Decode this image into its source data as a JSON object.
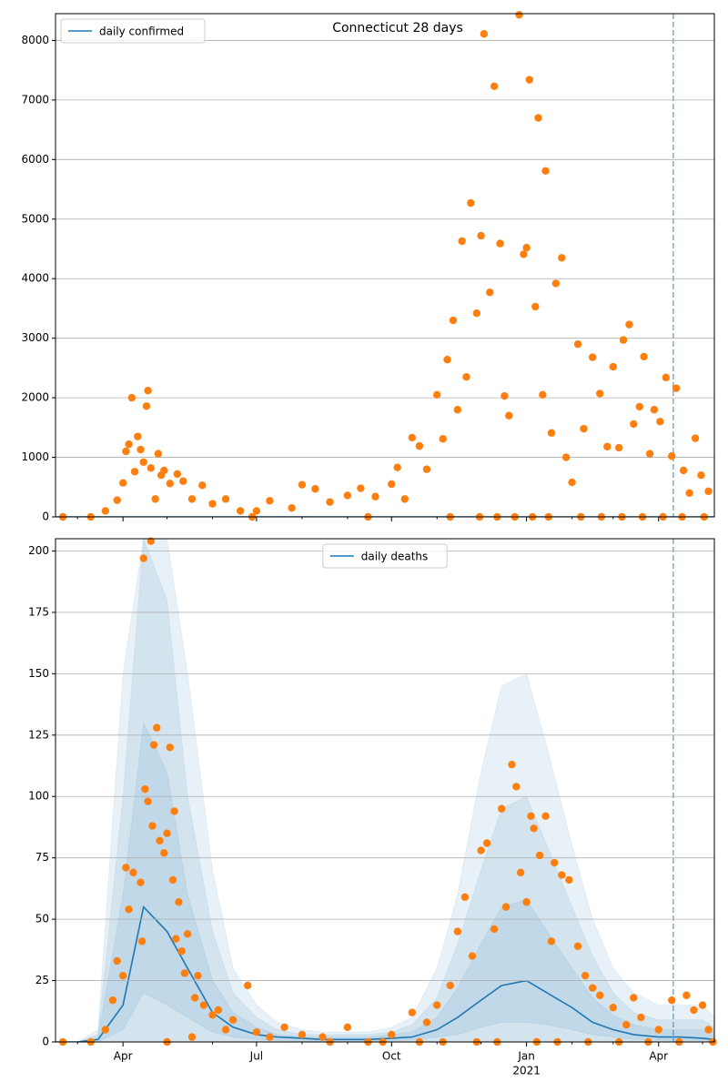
{
  "chart_data": [
    {
      "type": "scatter-line",
      "title": "Connecticut 28 days",
      "xlim": [
        "2020-02-15",
        "2021-05-09"
      ],
      "ylim": [
        0,
        8450
      ],
      "yticks": [
        0,
        1000,
        2000,
        3000,
        4000,
        5000,
        6000,
        7000,
        8000
      ],
      "grid": true,
      "legend": "upper left",
      "vline": {
        "x": "2021-04-11",
        "color": "#1f77b4"
      },
      "series": [
        {
          "name": "daily confirmed",
          "color": "#1f77b4",
          "x": [
            "2020-02-15",
            "2021-05-09"
          ],
          "values": [
            0,
            0
          ]
        }
      ],
      "points": {
        "color": "#ff7f0e",
        "x": [
          "2020-02-20",
          "2020-03-10",
          "2020-03-20",
          "2020-03-28",
          "2020-04-01",
          "2020-04-03",
          "2020-04-05",
          "2020-04-07",
          "2020-04-09",
          "2020-04-11",
          "2020-04-13",
          "2020-04-15",
          "2020-04-17",
          "2020-04-18",
          "2020-04-20",
          "2020-04-23",
          "2020-04-25",
          "2020-04-27",
          "2020-04-29",
          "2020-05-03",
          "2020-05-08",
          "2020-05-12",
          "2020-05-18",
          "2020-05-25",
          "2020-06-01",
          "2020-06-10",
          "2020-06-20",
          "2020-07-01",
          "2020-07-10",
          "2020-07-25",
          "2020-08-01",
          "2020-08-10",
          "2020-08-20",
          "2020-09-01",
          "2020-09-10",
          "2020-09-20",
          "2020-10-01",
          "2020-10-05",
          "2020-10-10",
          "2020-10-15",
          "2020-10-20",
          "2020-10-25",
          "2020-11-01",
          "2020-11-05",
          "2020-11-08",
          "2020-11-12",
          "2020-11-15",
          "2020-11-18",
          "2020-11-21",
          "2020-11-24",
          "2020-11-28",
          "2020-12-01",
          "2020-12-03",
          "2020-12-07",
          "2020-12-10",
          "2020-12-14",
          "2020-12-17",
          "2020-12-20",
          "2020-12-27",
          "2020-12-30",
          "2021-01-01",
          "2021-01-03",
          "2021-01-07",
          "2021-01-09",
          "2021-01-12",
          "2021-01-14",
          "2021-01-18",
          "2021-01-21",
          "2021-01-25",
          "2021-01-28",
          "2021-02-01",
          "2021-02-05",
          "2021-02-09",
          "2021-02-15",
          "2021-02-20",
          "2021-02-25",
          "2021-03-01",
          "2021-03-05",
          "2021-03-08",
          "2021-03-12",
          "2021-03-15",
          "2021-03-19",
          "2021-03-22",
          "2021-03-26",
          "2021-03-29",
          "2021-04-02",
          "2021-04-06",
          "2021-04-10",
          "2021-04-13",
          "2021-04-18",
          "2021-04-22",
          "2021-04-26",
          "2021-04-30",
          "2021-05-05",
          "2020-06-28",
          "2020-09-15",
          "2020-11-10",
          "2020-11-30",
          "2020-12-12",
          "2020-12-24",
          "2021-01-05",
          "2021-01-16",
          "2021-02-07",
          "2021-02-21",
          "2021-03-07",
          "2021-03-21",
          "2021-04-04",
          "2021-04-17",
          "2021-05-02"
        ],
        "values": [
          0,
          0,
          100,
          280,
          570,
          1100,
          1220,
          2000,
          760,
          1350,
          1130,
          920,
          1860,
          2120,
          820,
          300,
          1060,
          700,
          780,
          560,
          720,
          600,
          300,
          530,
          220,
          300,
          100,
          100,
          270,
          150,
          540,
          470,
          250,
          360,
          480,
          340,
          550,
          830,
          300,
          1330,
          1190,
          800,
          2050,
          1310,
          2640,
          3300,
          1800,
          4630,
          2350,
          5270,
          3420,
          4720,
          8110,
          3770,
          7230,
          4590,
          2030,
          1700,
          8430,
          4410,
          4520,
          7340,
          3530,
          6700,
          2050,
          5810,
          1410,
          3920,
          4350,
          1000,
          580,
          2900,
          1480,
          2680,
          2070,
          1180,
          2520,
          1160,
          2970,
          3230,
          1560,
          1850,
          2690,
          1060,
          1800,
          1600,
          2340,
          1020,
          2160,
          780,
          400,
          1320,
          700,
          430,
          0,
          0,
          0,
          0,
          0,
          0,
          0,
          0,
          0,
          0,
          0,
          0,
          0,
          0,
          0
        ]
      }
    },
    {
      "type": "scatter-band",
      "xlim": [
        "2020-02-15",
        "2021-05-09"
      ],
      "ylim": [
        0,
        205
      ],
      "yticks": [
        0,
        25,
        50,
        75,
        100,
        125,
        150,
        175,
        200
      ],
      "grid": true,
      "legend": "upper center",
      "xticks": [
        {
          "value": "2020-04-01",
          "label": "Apr"
        },
        {
          "value": "2020-07-01",
          "label": "Jul"
        },
        {
          "value": "2020-10-01",
          "label": "Oct"
        },
        {
          "value": "2021-01-01",
          "label": "Jan"
        },
        {
          "value": "2021-04-01",
          "label": "Apr"
        }
      ],
      "year_label": "2021",
      "xminorticks": [
        "2020-03-01",
        "2020-05-01",
        "2020-06-01",
        "2020-08-01",
        "2020-09-01",
        "2020-11-01",
        "2020-12-01",
        "2021-02-01",
        "2021-03-01",
        "2021-05-01"
      ],
      "vline": {
        "x": "2021-04-11",
        "color": "#1f77b4"
      },
      "series": [
        {
          "name": "daily deaths",
          "color": "#1f77b4",
          "x": [
            "2020-02-15",
            "2020-03-01",
            "2020-03-15",
            "2020-04-01",
            "2020-04-15",
            "2020-05-01",
            "2020-05-15",
            "2020-06-01",
            "2020-06-15",
            "2020-07-01",
            "2020-07-15",
            "2020-08-01",
            "2020-08-15",
            "2020-09-01",
            "2020-09-15",
            "2020-10-01",
            "2020-10-15",
            "2020-11-01",
            "2020-11-15",
            "2020-12-01",
            "2020-12-15",
            "2021-01-01",
            "2021-01-15",
            "2021-02-01",
            "2021-02-15",
            "2021-03-01",
            "2021-03-15",
            "2021-04-01",
            "2021-04-15",
            "2021-05-01",
            "2021-05-09"
          ],
          "values": [
            0,
            0,
            1,
            15,
            55,
            45,
            30,
            12,
            6,
            3,
            2,
            1.5,
            1,
            1,
            1,
            1.5,
            2,
            5,
            10,
            17,
            23,
            25,
            20,
            14,
            8,
            5,
            3,
            2,
            2,
            1.5,
            1
          ]
        }
      ],
      "bands": {
        "color": "#1f77b4",
        "x": [
          "2020-02-15",
          "2020-03-01",
          "2020-03-15",
          "2020-04-01",
          "2020-04-15",
          "2020-05-01",
          "2020-05-15",
          "2020-06-01",
          "2020-06-15",
          "2020-07-01",
          "2020-07-15",
          "2020-08-01",
          "2020-08-15",
          "2020-09-01",
          "2020-09-15",
          "2020-10-01",
          "2020-10-15",
          "2020-11-01",
          "2020-11-15",
          "2020-12-01",
          "2020-12-15",
          "2021-01-01",
          "2021-01-15",
          "2021-02-01",
          "2021-02-15",
          "2021-03-01",
          "2021-03-15",
          "2021-04-01",
          "2021-04-15",
          "2021-05-01",
          "2021-05-09"
        ],
        "levels": [
          {
            "lower": [
              0,
              0,
              0,
              0,
              0,
              0,
              0,
              0,
              0,
              0,
              0,
              0,
              0,
              0,
              0,
              0,
              0,
              0,
              0,
              0,
              0,
              0,
              0,
              0,
              0,
              0,
              0,
              0,
              0,
              0,
              0
            ],
            "upper": [
              0,
              0,
              5,
              150,
              205,
              205,
              150,
              70,
              30,
              15,
              8,
              5,
              4,
              4,
              4,
              6,
              10,
              30,
              60,
              110,
              145,
              150,
              120,
              80,
              50,
              30,
              20,
              15,
              15,
              15,
              10
            ]
          },
          {
            "lower": [
              0,
              0,
              0,
              0,
              0,
              0,
              0,
              0,
              0,
              0,
              0,
              0,
              0,
              0,
              0,
              0,
              0,
              0,
              0,
              0,
              0,
              0,
              0,
              0,
              0,
              0,
              0,
              0,
              0,
              0,
              0
            ],
            "upper": [
              0,
              0,
              3,
              100,
              205,
              180,
              100,
              45,
              20,
              10,
              5,
              3,
              3,
              3,
              3,
              4,
              7,
              18,
              40,
              70,
              95,
              100,
              80,
              55,
              35,
              20,
              12,
              9,
              9,
              9,
              6
            ]
          },
          {
            "lower": [
              0,
              0,
              0,
              5,
              20,
              15,
              10,
              4,
              2,
              1,
              0.5,
              0.3,
              0.3,
              0.3,
              0.3,
              0.5,
              0.7,
              2,
              3,
              6,
              8,
              8,
              7,
              5,
              3,
              2,
              1,
              0.7,
              0.7,
              0.5,
              0.3
            ],
            "upper": [
              0,
              0,
              2,
              60,
              130,
              110,
              60,
              25,
              12,
              6,
              3,
              2,
              2,
              2,
              2,
              3,
              4,
              10,
              22,
              40,
              55,
              58,
              45,
              30,
              18,
              11,
              7,
              5,
              5,
              5,
              4
            ]
          }
        ]
      },
      "points": {
        "color": "#ff7f0e",
        "x": [
          "2020-02-20",
          "2020-03-10",
          "2020-03-20",
          "2020-03-25",
          "2020-03-28",
          "2020-04-01",
          "2020-04-03",
          "2020-04-05",
          "2020-04-08",
          "2020-04-15",
          "2020-04-16",
          "2020-04-13",
          "2020-04-14",
          "2020-04-20",
          "2020-04-18",
          "2020-04-22",
          "2020-04-24",
          "2020-04-21",
          "2020-04-26",
          "2020-05-03",
          "2020-04-29",
          "2020-05-01",
          "2020-05-06",
          "2020-05-05",
          "2020-05-07",
          "2020-05-09",
          "2020-05-11",
          "2020-05-13",
          "2020-05-15",
          "2020-05-18",
          "2020-05-20",
          "2020-05-22",
          "2020-05-26",
          "2020-06-01",
          "2020-06-05",
          "2020-06-10",
          "2020-06-15",
          "2020-06-25",
          "2020-07-01",
          "2020-07-10",
          "2020-07-20",
          "2020-08-01",
          "2020-08-15",
          "2020-09-01",
          "2020-09-15",
          "2020-10-01",
          "2020-10-15",
          "2020-10-25",
          "2020-11-01",
          "2020-11-10",
          "2020-11-15",
          "2020-11-20",
          "2020-11-25",
          "2020-12-01",
          "2020-12-05",
          "2020-12-10",
          "2020-12-15",
          "2020-12-18",
          "2020-12-22",
          "2020-12-25",
          "2020-12-28",
          "2021-01-01",
          "2021-01-04",
          "2021-01-06",
          "2021-01-10",
          "2021-01-14",
          "2021-01-18",
          "2021-01-20",
          "2021-01-25",
          "2021-01-30",
          "2021-02-05",
          "2021-02-10",
          "2021-02-15",
          "2021-02-20",
          "2021-03-01",
          "2021-03-10",
          "2021-03-15",
          "2021-03-20",
          "2021-04-01",
          "2021-04-10",
          "2021-04-20",
          "2021-04-25",
          "2021-05-01",
          "2021-05-05",
          "2020-05-01",
          "2020-08-20",
          "2020-09-25",
          "2020-10-20",
          "2020-11-05",
          "2020-11-28",
          "2020-12-12",
          "2021-01-08",
          "2021-01-22",
          "2021-02-12",
          "2021-03-05",
          "2021-03-25",
          "2021-04-15",
          "2021-05-08"
        ],
        "values": [
          0,
          0,
          5,
          17,
          33,
          27,
          71,
          54,
          69,
          197,
          103,
          65,
          41,
          204,
          98,
          121,
          128,
          88,
          82,
          120,
          77,
          85,
          94,
          66,
          42,
          57,
          37,
          28,
          44,
          2,
          18,
          27,
          15,
          11,
          13,
          5,
          9,
          23,
          4,
          2,
          6,
          3,
          2,
          6,
          0,
          3,
          12,
          8,
          15,
          23,
          45,
          59,
          35,
          78,
          81,
          46,
          95,
          55,
          113,
          104,
          69,
          57,
          92,
          87,
          76,
          92,
          41,
          73,
          68,
          66,
          39,
          27,
          22,
          19,
          14,
          7,
          18,
          10,
          5,
          17,
          19,
          13,
          15,
          5,
          0,
          0,
          0,
          0,
          0,
          0,
          0,
          0,
          0,
          0,
          0,
          0,
          0,
          0
        ]
      }
    }
  ]
}
